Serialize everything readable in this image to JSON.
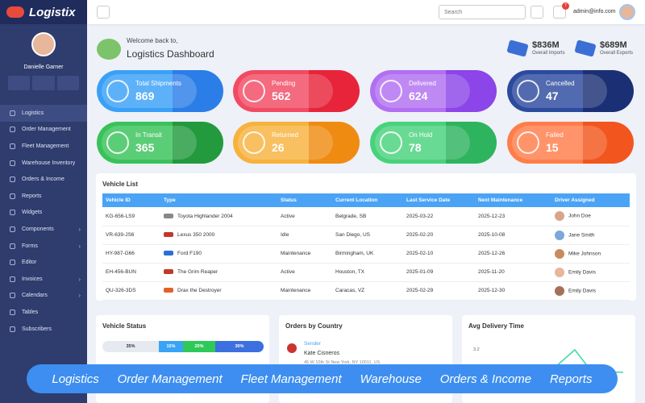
{
  "sidebar": {
    "brand": "Logistix",
    "user": "Danielle Garner",
    "nav": [
      "Logistics",
      "Order Management",
      "Fleet Management",
      "Warehouse Inventory",
      "Orders & Income",
      "Reports",
      "Widgets",
      "Components",
      "Forms",
      "Editor",
      "Invoices",
      "Calendars",
      "Tables",
      "Subscribers"
    ]
  },
  "topbar": {
    "search_placeholder": "Search",
    "notifications": 7,
    "email": "admin@info.com"
  },
  "header": {
    "greeting": "Welcome back to,",
    "title": "Logistics Dashboard",
    "stats": [
      {
        "value": "$836M",
        "label": "Overall Imports"
      },
      {
        "value": "$689M",
        "label": "Overall Exports"
      }
    ]
  },
  "cards": [
    {
      "label": "Total Shipments",
      "value": 869
    },
    {
      "label": "Pending",
      "value": 562
    },
    {
      "label": "Delivered",
      "value": 624
    },
    {
      "label": "Cancelled",
      "value": 47
    },
    {
      "label": "In Transit",
      "value": 365
    },
    {
      "label": "Returned",
      "value": 26
    },
    {
      "label": "On Hold",
      "value": 78
    },
    {
      "label": "Failed",
      "value": 15
    }
  ],
  "vehicle_list": {
    "title": "Vehicle List",
    "columns": [
      "Vehicle ID",
      "Type",
      "Status",
      "Current Location",
      "Last Service Date",
      "Next Maintenance",
      "Driver Assigned"
    ],
    "rows": [
      [
        "KG-656-LS9",
        "Toyota Highlander 2004",
        "Active",
        "Belgrade, SB",
        "2025-03-22",
        "2025-12-23",
        "John Doe"
      ],
      [
        "VR-639-JS6",
        "Lexus 350 2000",
        "Idle",
        "San Diego, US",
        "2025-02-20",
        "2025-10-08",
        "Jane Smith"
      ],
      [
        "HY-987-G66",
        "Ford F190",
        "Maintenance",
        "Birmingham, UK",
        "2025-02-10",
        "2025-12-26",
        "Mike Johnson"
      ],
      [
        "EH-456-BUN",
        "The Grim Reaper",
        "Active",
        "Houston, TX",
        "2025-01-09",
        "2025-11-20",
        "Emily Davis"
      ],
      [
        "QU-326-3DS",
        "Drax the Destroyer",
        "Maintenance",
        "Caracas, VZ",
        "2025-02-29",
        "2025-12-30",
        "Emily Davis"
      ]
    ]
  },
  "vehicle_status": {
    "title": "Vehicle Status",
    "segments": [
      {
        "value": 35,
        "label": "35%"
      },
      {
        "value": 15,
        "label": "15%"
      },
      {
        "value": 20,
        "label": "20%"
      },
      {
        "value": 30,
        "label": "30%"
      }
    ]
  },
  "orders_by_country": {
    "title": "Orders by Country",
    "sender_label": "Sender",
    "sender_name": "Kate Cisneros",
    "sender_address": "45 W 10th St New York, NY 10011, US"
  },
  "avg_delivery_time": {
    "title": "Avg Delivery Time",
    "ytick": 3.2
  },
  "banner": [
    "Logistics",
    "Order Management",
    "Fleet Management",
    "Warehouse",
    "Orders & Income",
    "Reports"
  ]
}
